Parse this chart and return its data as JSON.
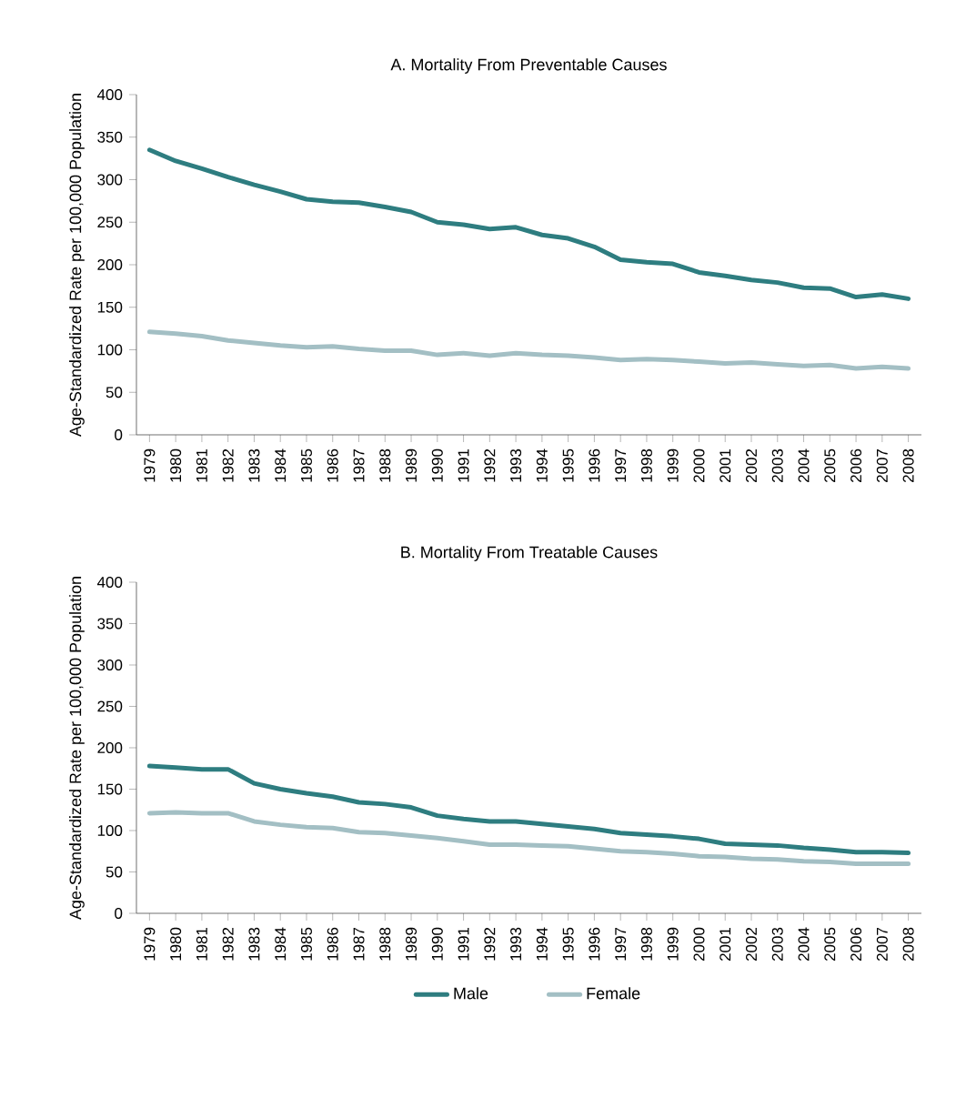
{
  "chart_data": [
    {
      "type": "line",
      "title": "A. Mortality From Preventable Causes",
      "ylabel": "Age-Standardized Rate per 100,000 Population",
      "categories": [
        "1979",
        "1980",
        "1981",
        "1982",
        "1983",
        "1984",
        "1985",
        "1986",
        "1987",
        "1988",
        "1989",
        "1990",
        "1991",
        "1992",
        "1993",
        "1994",
        "1995",
        "1996",
        "1997",
        "1998",
        "1999",
        "2000",
        "2001",
        "2002",
        "2003",
        "2004",
        "2005",
        "2006",
        "2007",
        "2008"
      ],
      "series": [
        {
          "color": "#2e7d80",
          "values": [
            335,
            322,
            313,
            303,
            294,
            286,
            277,
            274,
            273,
            268,
            262,
            250,
            247,
            242,
            244,
            235,
            231,
            221,
            206,
            203,
            201,
            191,
            187,
            182,
            179,
            173,
            172,
            162,
            165,
            160
          ]
        },
        {
          "color": "#a3bfc4",
          "values": [
            121,
            119,
            116,
            111,
            108,
            105,
            103,
            104,
            101,
            99,
            99,
            94,
            96,
            93,
            96,
            94,
            93,
            91,
            88,
            89,
            88,
            86,
            84,
            85,
            83,
            81,
            82,
            78,
            80,
            78
          ]
        }
      ],
      "ylim": [
        0,
        400
      ],
      "yticks": [
        0,
        50,
        100,
        150,
        200,
        250,
        300,
        350,
        400
      ],
      "grid": false,
      "legend": false,
      "marker": "none",
      "line_style": "solid"
    },
    {
      "type": "line",
      "title": "B. Mortality From Treatable Causes",
      "ylabel": "Age-Standardized Rate per 100,000 Population",
      "categories": [
        "1979",
        "1980",
        "1981",
        "1982",
        "1983",
        "1984",
        "1985",
        "1986",
        "1987",
        "1988",
        "1989",
        "1990",
        "1991",
        "1992",
        "1993",
        "1994",
        "1995",
        "1996",
        "1997",
        "1998",
        "1999",
        "2000",
        "2001",
        "2002",
        "2003",
        "2004",
        "2005",
        "2006",
        "2007",
        "2008"
      ],
      "series": [
        {
          "name": "Male",
          "color": "#2e7d80",
          "values": [
            178,
            176,
            174,
            174,
            157,
            150,
            145,
            141,
            134,
            132,
            128,
            118,
            114,
            111,
            111,
            108,
            105,
            102,
            97,
            95,
            93,
            90,
            84,
            83,
            82,
            79,
            77,
            74,
            74,
            73
          ]
        },
        {
          "name": "Female",
          "color": "#a3bfc4",
          "values": [
            121,
            122,
            121,
            121,
            111,
            107,
            104,
            103,
            98,
            97,
            94,
            91,
            87,
            83,
            83,
            82,
            81,
            78,
            75,
            74,
            72,
            69,
            68,
            66,
            65,
            63,
            62,
            60,
            60,
            60
          ]
        }
      ],
      "ylim": [
        0,
        400
      ],
      "yticks": [
        0,
        50,
        100,
        150,
        200,
        250,
        300,
        350,
        400
      ],
      "grid": false,
      "legend": "bottom",
      "marker": "none",
      "line_style": "solid"
    }
  ]
}
